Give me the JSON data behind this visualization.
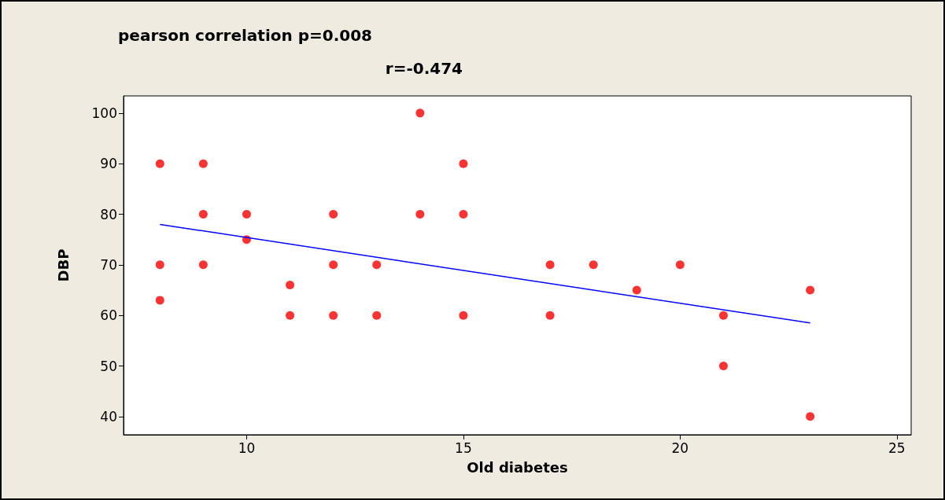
{
  "chart_data": {
    "type": "scatter",
    "title": "pearson correlation p=0.008",
    "subtitle": "r=-0.474",
    "xlabel": "Old diabetes",
    "ylabel": "DBP",
    "xlim": [
      7.16,
      25.33
    ],
    "xticks": [
      10,
      15,
      20,
      25
    ],
    "ylim": [
      36.4,
      103.4
    ],
    "yticks": [
      40,
      50,
      60,
      70,
      80,
      90,
      100
    ],
    "grid": false,
    "marker": "circle",
    "series": [
      {
        "color": "#ff0000",
        "x": [
          8,
          8,
          8,
          9,
          9,
          9,
          10,
          10,
          11,
          11,
          12,
          12,
          12,
          13,
          13,
          14,
          14,
          15,
          15,
          15,
          17,
          17,
          18,
          19,
          20,
          21,
          21,
          23,
          23
        ],
        "values": [
          90,
          70,
          63,
          90,
          80,
          70,
          80,
          75,
          66,
          60,
          80,
          70,
          60,
          70,
          60,
          100,
          80,
          90,
          80,
          60,
          70,
          60,
          70,
          65,
          70,
          60,
          50,
          65,
          40
        ]
      },
      {
        "type": "line",
        "color": "#0000ff",
        "marker": "none",
        "line_style": "solid",
        "x": [
          8,
          23
        ],
        "values": [
          78,
          58.5
        ]
      }
    ]
  }
}
